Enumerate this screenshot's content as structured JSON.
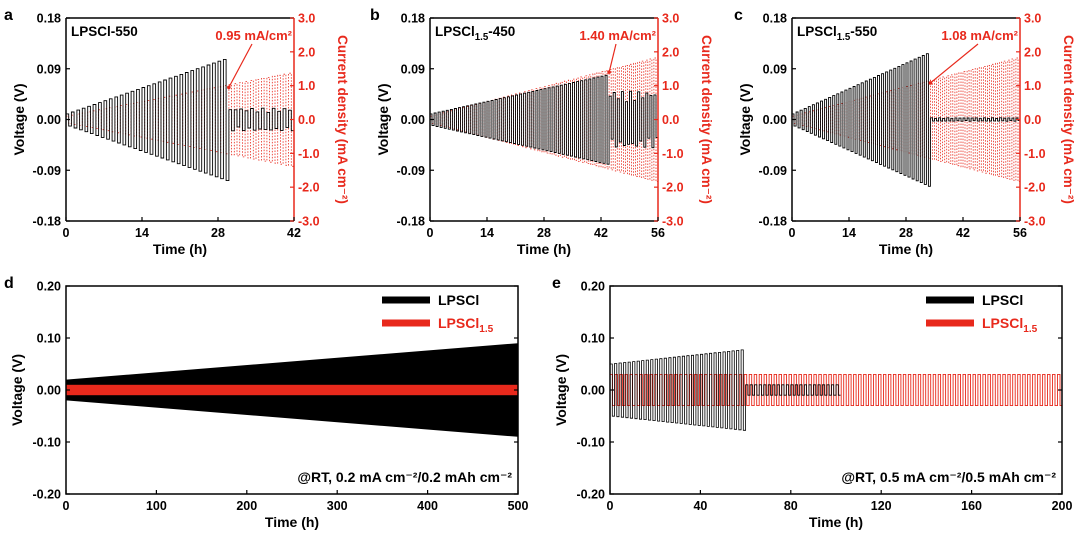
{
  "charts": [
    {
      "panel_label": "a",
      "sample_label": "LPSCl-550",
      "sample_label_parts": [
        "LPSCl",
        "",
        "-550"
      ],
      "type": "line",
      "xlabel": "Time (h)",
      "ylabel_left": "Voltage (V)",
      "ylabel_right": "Current density (mA cm⁻²)",
      "xlim": [
        0,
        42
      ],
      "xticks": [
        "0",
        "14",
        "28",
        "42"
      ],
      "ylim_left": [
        -0.18,
        0.18
      ],
      "yticks_left": [
        "-0.18",
        "-0.09",
        "0.00",
        "0.09",
        "0.18"
      ],
      "ylim_right": [
        -3.0,
        3.0
      ],
      "yticks_right": [
        "-3.0",
        "-2.0",
        "-1.0",
        "0.0",
        "1.0",
        "2.0",
        "3.0"
      ],
      "annotation": "0.95 mA/cm²",
      "annotation_at": {
        "x_h": 30,
        "current": 0.95
      },
      "short_circuit_h": 30,
      "current_max": 1.4,
      "voltage_peak_before_failure": 0.11,
      "voltage_noise_after_failure": 0.02,
      "end_h": 42
    },
    {
      "panel_label": "b",
      "sample_label": "LPSCl1.5-450",
      "sample_label_parts": [
        "LPSCl",
        "1.5",
        "-450"
      ],
      "type": "line",
      "xlabel": "Time (h)",
      "ylabel_left": "Voltage (V)",
      "ylabel_right": "Current density (mA cm⁻²)",
      "xlim": [
        0,
        56
      ],
      "xticks": [
        "0",
        "14",
        "28",
        "42",
        "56"
      ],
      "ylim_left": [
        -0.18,
        0.18
      ],
      "yticks_left": [
        "-0.18",
        "-0.09",
        "0.00",
        "0.09",
        "0.18"
      ],
      "ylim_right": [
        -3.0,
        3.0
      ],
      "yticks_right": [
        "-3.0",
        "-2.0",
        "-1.0",
        "0.0",
        "1.0",
        "2.0",
        "3.0"
      ],
      "annotation": "1.40 mA/cm²",
      "annotation_at": {
        "x_h": 44,
        "current": 1.4
      },
      "short_circuit_h": 44,
      "current_max": 1.85,
      "voltage_peak_before_failure": 0.08,
      "voltage_noise_after_failure": 0.05,
      "end_h": 56
    },
    {
      "panel_label": "c",
      "sample_label": "LPSCl1.5-550",
      "sample_label_parts": [
        "LPSCl",
        "1.5",
        "-550"
      ],
      "type": "line",
      "xlabel": "Time (h)",
      "ylabel_left": "Voltage (V)",
      "ylabel_right": "Current density (mA cm⁻²)",
      "xlim": [
        0,
        56
      ],
      "xticks": [
        "0",
        "14",
        "28",
        "42",
        "56"
      ],
      "ylim_left": [
        -0.18,
        0.18
      ],
      "yticks_left": [
        "-0.18",
        "-0.09",
        "0.00",
        "0.09",
        "0.18"
      ],
      "ylim_right": [
        -3.0,
        3.0
      ],
      "yticks_right": [
        "-3.0",
        "-2.0",
        "-1.0",
        "0.0",
        "1.0",
        "2.0",
        "3.0"
      ],
      "annotation": "1.08 mA/cm²",
      "annotation_at": {
        "x_h": 34,
        "current": 1.08
      },
      "short_circuit_h": 34,
      "current_max": 1.85,
      "voltage_peak_before_failure": 0.12,
      "voltage_noise_after_failure": 0.003,
      "end_h": 56
    },
    {
      "panel_label": "d",
      "type": "line",
      "xlabel": "Time (h)",
      "ylabel": "Voltage (V)",
      "xlim": [
        0,
        500
      ],
      "xticks": [
        "0",
        "100",
        "200",
        "300",
        "400",
        "500"
      ],
      "ylim": [
        -0.2,
        0.2
      ],
      "yticks": [
        "-0.20",
        "-0.10",
        "0.00",
        "0.10",
        "0.20"
      ],
      "condition_text": "@RT, 0.2 mA cm⁻²/0.2 mAh cm⁻²",
      "legend": [
        {
          "name": "LPSCl",
          "sub": "",
          "color": "#000000"
        },
        {
          "name": "LPSCl",
          "sub": "1.5",
          "color": "#e8291c"
        }
      ],
      "series": [
        {
          "name": "LPSCl",
          "x_end": 500,
          "amp_start": 0.02,
          "amp_end": 0.09,
          "color": "#000000"
        },
        {
          "name": "LPSCl1.5",
          "x_end": 500,
          "amp_start": 0.01,
          "amp_end": 0.01,
          "color": "#e8291c"
        }
      ]
    },
    {
      "panel_label": "e",
      "type": "line",
      "xlabel": "Time (h)",
      "ylabel": "Voltage (V)",
      "xlim": [
        0,
        200
      ],
      "xticks": [
        "0",
        "40",
        "80",
        "120",
        "160",
        "200"
      ],
      "ylim": [
        -0.2,
        0.2
      ],
      "yticks": [
        "-0.20",
        "-0.10",
        "0.00",
        "0.10",
        "0.20"
      ],
      "condition_text": "@RT, 0.5 mA cm⁻²/0.5 mAh cm⁻²",
      "legend": [
        {
          "name": "LPSCl",
          "sub": "",
          "color": "#000000"
        },
        {
          "name": "LPSCl",
          "sub": "1.5",
          "color": "#e8291c"
        }
      ],
      "series": [
        {
          "name": "LPSCl",
          "short_circuit_h": 60,
          "amp_start": 0.05,
          "amp_end": 0.078,
          "after_amp": 0.01,
          "x_end": 102,
          "color": "#000000"
        },
        {
          "name": "LPSCl1.5",
          "x_end": 200,
          "amp_start": 0.03,
          "amp_end": 0.03,
          "color": "#e8291c"
        }
      ]
    }
  ],
  "colors": {
    "voltage": "#000000",
    "current": "#e8291c",
    "axis": "#000000",
    "accent_red": "#e8291c"
  }
}
